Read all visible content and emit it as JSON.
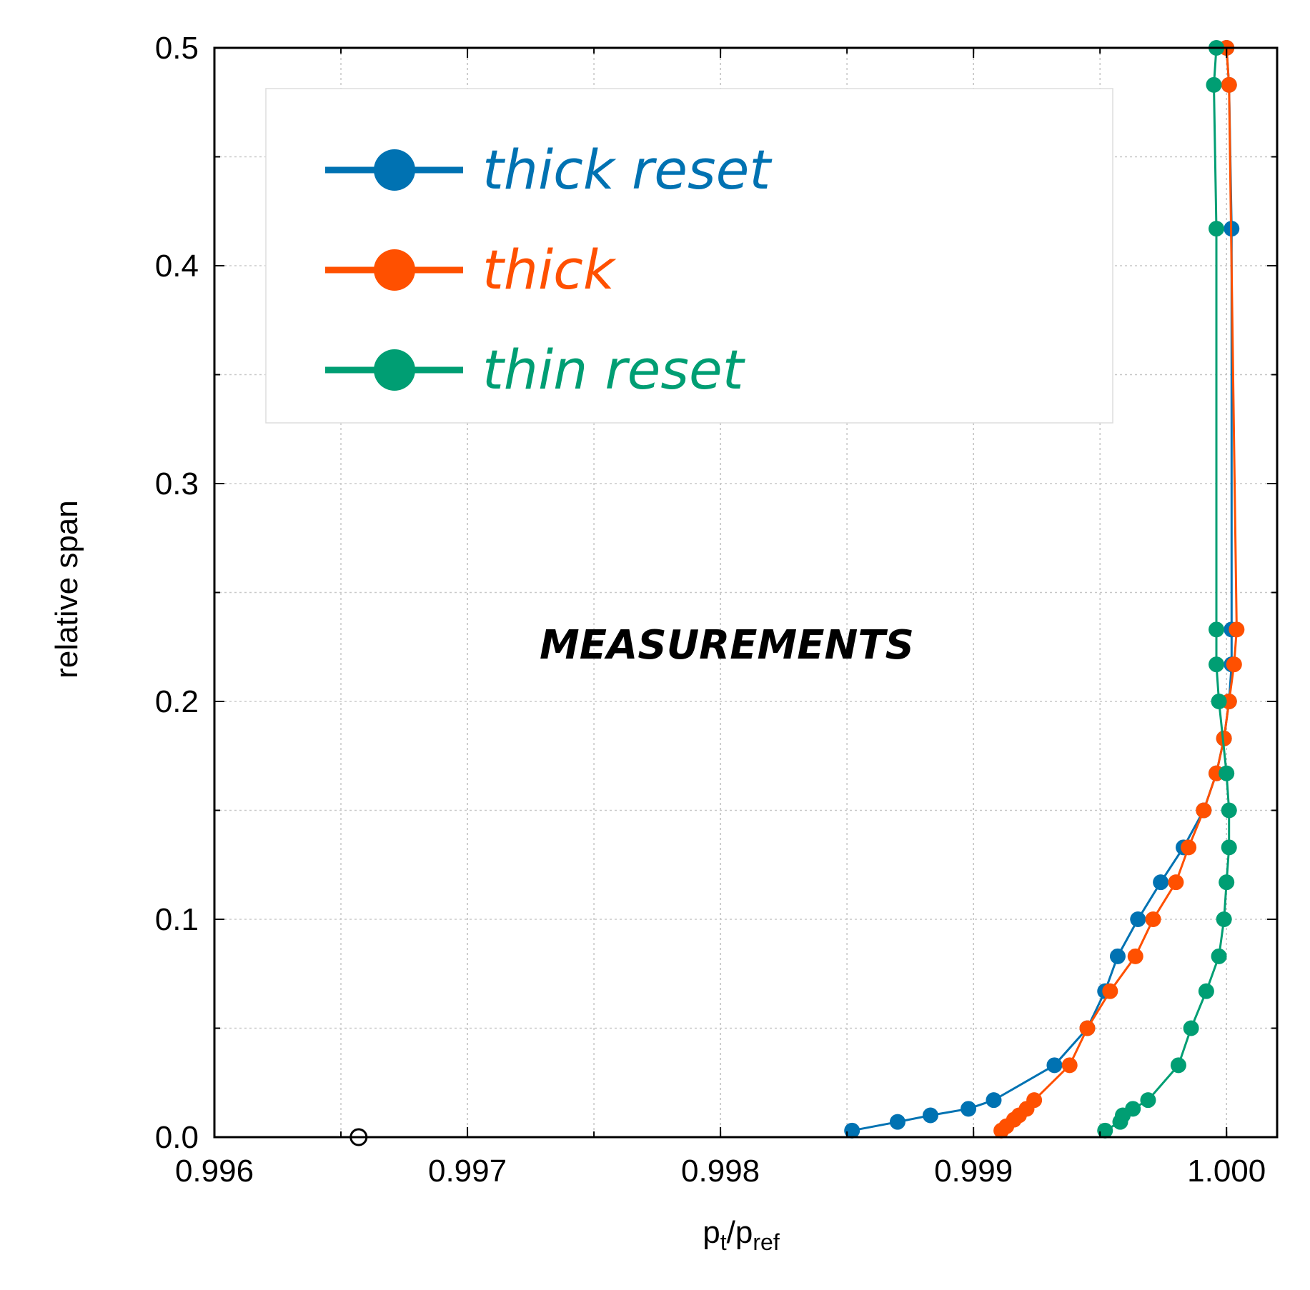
{
  "chart_data": {
    "type": "line",
    "xlabel": {
      "main": "p",
      "sub1": "t",
      "sep": "/p",
      "sub2": "ref"
    },
    "ylabel": "relative span",
    "xlim": [
      0.996,
      1.0002
    ],
    "ylim": [
      0.0,
      0.5
    ],
    "x_ticks": [
      0.996,
      0.997,
      0.998,
      0.999,
      1.0
    ],
    "x_tick_labels": [
      "0.996",
      "0.997",
      "0.998",
      "0.999",
      "1.000"
    ],
    "y_ticks": [
      0.0,
      0.1,
      0.2,
      0.3,
      0.4,
      0.5
    ],
    "y_tick_labels": [
      "0.0",
      "0.1",
      "0.2",
      "0.3",
      "0.4",
      "0.5"
    ],
    "grid": true,
    "annotation": "MEASUREMENTS",
    "legend_position": "top-left",
    "series": [
      {
        "name": "thick reset",
        "color": "#0072b2",
        "x": [
          0.99852,
          0.9987,
          0.99883,
          0.99898,
          0.99908,
          0.99932,
          0.99945,
          0.99952,
          0.99957,
          0.99965,
          0.99974,
          0.99983,
          0.99991,
          0.99996,
          0.99999,
          1.00001,
          1.00002,
          1.00002,
          1.00002,
          1.00001,
          1.0
        ],
        "y": [
          0.003,
          0.007,
          0.01,
          0.013,
          0.017,
          0.033,
          0.05,
          0.067,
          0.083,
          0.1,
          0.117,
          0.133,
          0.15,
          0.167,
          0.183,
          0.2,
          0.217,
          0.233,
          0.417,
          0.483,
          0.5
        ]
      },
      {
        "name": "thick",
        "color": "#ff5000",
        "x": [
          0.99911,
          0.99913,
          0.99916,
          0.99918,
          0.99921,
          0.99924,
          0.99938,
          0.99945,
          0.99954,
          0.99964,
          0.99971,
          0.9998,
          0.99985,
          0.99991,
          0.99996,
          0.99999,
          1.00001,
          1.00003,
          1.00004,
          1.00001,
          1.0
        ],
        "y": [
          0.003,
          0.005,
          0.008,
          0.01,
          0.013,
          0.017,
          0.033,
          0.05,
          0.067,
          0.083,
          0.1,
          0.117,
          0.133,
          0.15,
          0.167,
          0.183,
          0.2,
          0.217,
          0.233,
          0.483,
          0.5
        ]
      },
      {
        "name": "thin reset",
        "color": "#009e73",
        "x": [
          0.99952,
          0.99958,
          0.99959,
          0.99963,
          0.99969,
          0.99981,
          0.99986,
          0.99992,
          0.99997,
          0.99999,
          1.0,
          1.00001,
          1.00001,
          1.0,
          0.99997,
          0.99996,
          0.99996,
          0.99996,
          0.99995,
          0.99996
        ],
        "y": [
          0.003,
          0.007,
          0.01,
          0.013,
          0.017,
          0.033,
          0.05,
          0.067,
          0.083,
          0.1,
          0.117,
          0.133,
          0.15,
          0.167,
          0.2,
          0.217,
          0.233,
          0.417,
          0.483,
          0.5
        ]
      }
    ],
    "open_marker": {
      "x": 0.99657,
      "y": 0.0
    }
  }
}
